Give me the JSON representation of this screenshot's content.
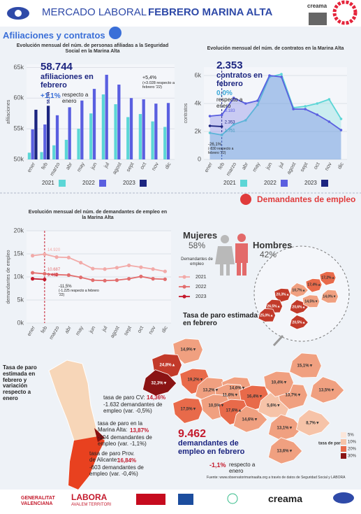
{
  "header": {
    "title_a": "MERCADO LABORAL",
    "title_b": "FEBRERO MARINA ALTA",
    "logo": "creama"
  },
  "sections": {
    "affiliations": "Afiliaciones y contratos",
    "unemployed": "Demandantes de empleo"
  },
  "chart_data": [
    {
      "type": "bar",
      "title": "Evolución mensual del núm. de personas afiliadas a la Seguridad Social en la Marina Alta",
      "y_label": "afiliaciones",
      "categories": [
        "ener",
        "feb",
        "marzo",
        "abr",
        "may",
        "jun",
        "jul",
        "agost",
        "sept",
        "oct",
        "nov",
        "dic"
      ],
      "series": [
        {
          "name": "2021",
          "color": "#5cd6d6",
          "values": [
            51100,
            51200,
            52300,
            53200,
            55000,
            57500,
            60600,
            59000,
            56900,
            57400,
            56200,
            55300
          ]
        },
        {
          "name": "2022",
          "color": "#5a5fe0",
          "values": [
            54900,
            55700,
            57200,
            58500,
            59600,
            61500,
            63800,
            62200,
            60000,
            59800,
            59100,
            59200
          ]
        },
        {
          "name": "2023",
          "color": "#1c2580",
          "values": [
            58100,
            58744,
            null,
            null,
            null,
            null,
            null,
            null,
            null,
            null,
            null,
            null
          ],
          "value_labels": [
            null,
            "58.744",
            null,
            null,
            null,
            null,
            null,
            null,
            null,
            null,
            null,
            null
          ]
        }
      ],
      "ylim": [
        50000,
        65500
      ],
      "yticks": [
        {
          "value": 50000,
          "label": "50k"
        },
        {
          "value": 55000,
          "label": "55k"
        },
        {
          "value": 60000,
          "label": "60k"
        },
        {
          "value": 65000,
          "label": "65k"
        }
      ],
      "grid": true,
      "legend": "bottom",
      "highlight": {
        "value": "58.744",
        "text": "afiliaciones en febrero",
        "change": "+1,1%",
        "change_text": "respecto a enero",
        "yoy": "+5,4%",
        "yoy_text": "(+3.028 respecto a febrero '22)"
      }
    },
    {
      "type": "line",
      "area": true,
      "title": "Evolución mensual del núm. de contratos en la Marina Alta",
      "y_label": "contratos",
      "categories": [
        "ener",
        "feb",
        "marzo",
        "abr",
        "may",
        "jun",
        "jul",
        "agost",
        "sept",
        "oct",
        "nov",
        "dic"
      ],
      "series": [
        {
          "name": "2021",
          "color": "#5cd6d6",
          "values": [
            1900,
            1751,
            2500,
            2800,
            3900,
            5900,
            6100,
            3700,
            3800,
            4000,
            4300,
            2900
          ],
          "value_labels": [
            null,
            "1.751",
            null,
            null,
            null,
            null,
            null,
            null,
            null,
            null,
            null,
            null
          ]
        },
        {
          "name": "2022",
          "color": "#5a5fe0",
          "values": [
            3100,
            3183,
            4400,
            4000,
            4200,
            6000,
            5900,
            3600,
            3600,
            3200,
            2700,
            2100
          ],
          "value_labels": [
            null,
            "3.183",
            null,
            null,
            null,
            null,
            null,
            null,
            null,
            null,
            null,
            null
          ]
        },
        {
          "name": "2023",
          "color": "#1c2580",
          "values": [
            2400,
            2353,
            null,
            null,
            null,
            null,
            null,
            null,
            null,
            null,
            null,
            null
          ],
          "value_labels": [
            null,
            "2.353",
            null,
            null,
            null,
            null,
            null,
            null,
            null,
            null,
            null,
            null
          ]
        }
      ],
      "ylim": [
        0,
        6600
      ],
      "yticks": [
        0,
        {
          "value": 2000,
          "label": "2k"
        },
        {
          "value": 4000,
          "label": "4k"
        },
        {
          "value": 6000,
          "label": "6k"
        }
      ],
      "grid": true,
      "legend": "bottom",
      "highlight": {
        "value": "2.353",
        "text": "contratos en febrero",
        "change": "0,0%",
        "change_text": "respecto a enero",
        "yoy": "-26,1%",
        "yoy_text": "(-830 respecto a febrero '22)"
      }
    },
    {
      "type": "line",
      "markers": true,
      "title": "Evolución mensual del núm. de demandantes de empleo en la Marina Alta",
      "y_label": "demandantes de empleo",
      "categories": [
        "ener",
        "feb",
        "marzo",
        "abr",
        "may",
        "jun",
        "jul",
        "agost",
        "sept",
        "oct",
        "nov",
        "dic"
      ],
      "series": [
        {
          "name": "2021",
          "color": "#f2aaa8",
          "values": [
            14600,
            14920,
            14300,
            14200,
            13100,
            11800,
            11700,
            12000,
            12500,
            12100,
            11700,
            11200
          ],
          "value_labels": [
            null,
            "14.920",
            null,
            null,
            null,
            null,
            null,
            null,
            null,
            null,
            null,
            null
          ]
        },
        {
          "name": "2022",
          "color": "#e26d6d",
          "values": [
            10900,
            10687,
            10500,
            10400,
            9900,
            9300,
            9200,
            9300,
            9600,
            10100,
            9600,
            9500
          ],
          "value_labels": [
            null,
            "10.687",
            null,
            null,
            null,
            null,
            null,
            null,
            null,
            null,
            null,
            null
          ]
        },
        {
          "name": "2023",
          "color": "#c41a2c",
          "values": [
            9600,
            9462,
            null,
            null,
            null,
            null,
            null,
            null,
            null,
            null,
            null,
            null
          ],
          "value_labels": [
            null,
            "9.462",
            null,
            null,
            null,
            null,
            null,
            null,
            null,
            null,
            null,
            null
          ]
        }
      ],
      "ylim": [
        0,
        20000
      ],
      "yticks": [
        {
          "value": 0,
          "label": "0k"
        },
        {
          "value": 5000,
          "label": "5k"
        },
        {
          "value": 10000,
          "label": "10k"
        },
        {
          "value": 15000,
          "label": "15k"
        },
        {
          "value": 20000,
          "label": "20k"
        }
      ],
      "grid": true,
      "legend": "right",
      "legend_title": "Demandantes de empleo",
      "highlight": {
        "yoy": "-11,5%",
        "yoy_text": "(-1.225 respecto a febrero '22)"
      }
    }
  ],
  "gender": {
    "women_label": "Mujeres",
    "women_pct": "58%",
    "men_label": "Hombres",
    "men_pct": "42%"
  },
  "map": {
    "title": "Tasa de paro estimada en febrero",
    "zoom_labels": [
      "17,2%▲",
      "17,4%▲",
      "10,7%▲",
      "20,3%▲",
      "14,0%▼",
      "26,5%▲",
      "20,6%▲",
      "14,5%▼",
      "25,0%▲",
      "20,5%▲"
    ],
    "labels": [
      "14,9%▼",
      "24,8%▲",
      "19,2%▼",
      "32,3%▼",
      "13,2%▼",
      "14,6%▼",
      "11,6%▼",
      "16,4%▼",
      "17,5%▼",
      "10,5%▼",
      "17,6%▲",
      "14,6%▼",
      "5,6%▼",
      "13,7%▼",
      "13,1%▼",
      "8,7%▼",
      "15,1%▼",
      "10,4%▼",
      "13,5%▼",
      "13,6%▼"
    ],
    "legend_title": "tasa de paro",
    "legend": [
      "5%",
      "10%",
      "20%",
      "30%"
    ]
  },
  "region": {
    "title": "Tasa de paro estimada en febrero y variación respecto a enero",
    "cv_label": "tasa de paro CV:",
    "cv_value": "14,36%",
    "cv_detail": "-1.632 demandantes de empleo (var. -0,5%)",
    "ma_label": "tasa de paro en la Marina Alta:",
    "ma_value": "13,87%",
    "ma_detail": "-104 demandantes de empleo (var. -1,1%)",
    "al_label": "tasa de paro Prov. de Alicante:",
    "al_value": "16,84%",
    "al_detail": "-603 demandantes de empleo (var. -0,4%)"
  },
  "summary": {
    "value": "9.462",
    "text": "demandantes de empleo en febrero",
    "change": "-1,1%",
    "change_text": "respecto a enero"
  },
  "source": "Fuente: www.observatorimarinaalta.org a través de datos de Seguridad Social y LABORA",
  "footer": {
    "gv": "GENERALITAT VALENCIANA",
    "labora": "LABORA",
    "labora_sub": "AVALEM TERRITORI",
    "creama": "creama"
  }
}
